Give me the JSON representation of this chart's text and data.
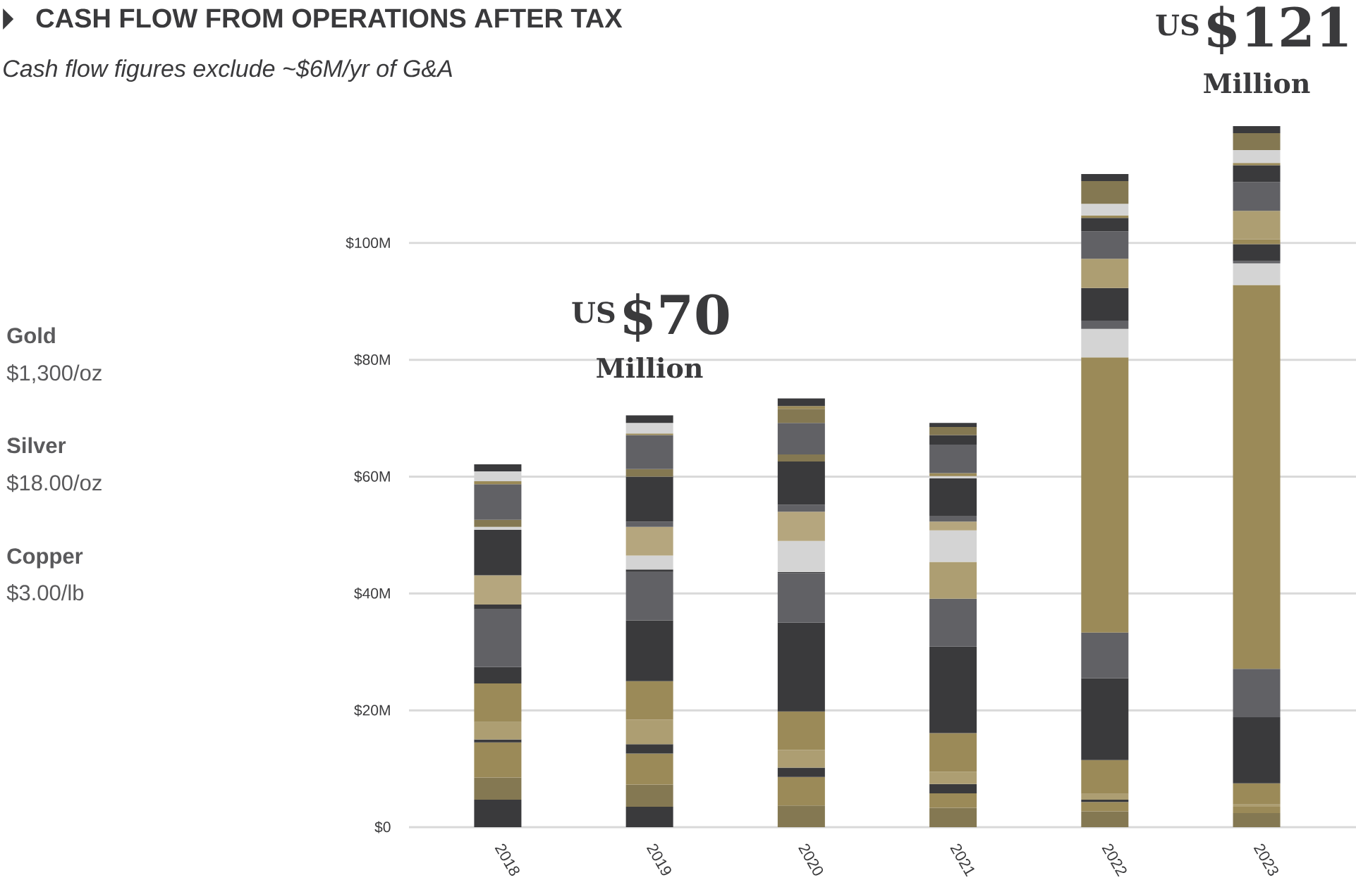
{
  "chart_data": {
    "type": "bar",
    "stacked": true,
    "grid": "y",
    "title": "CASH FLOW FROM OPERATIONS AFTER TAX",
    "subtitle": "Cash flow figures exclude ~$6M/yr of G&A",
    "categories": [
      "2018",
      "2019",
      "2020",
      "2021",
      "2022",
      "2023"
    ],
    "ylim": [
      0,
      120
    ],
    "yticks": [
      {
        "value": 0,
        "label": "$0"
      },
      {
        "value": 20,
        "label": "$20M"
      },
      {
        "value": 40,
        "label": "$40M"
      },
      {
        "value": 60,
        "label": "$60M"
      },
      {
        "value": 80,
        "label": "$80M"
      },
      {
        "value": 100,
        "label": "$100M"
      }
    ],
    "annotations": [
      "Gold",
      "$1,300/oz",
      "Silver",
      "$18.00/oz",
      "Copper",
      "$3.00/lb",
      "US",
      "$70",
      "Million",
      "US",
      "$121",
      "Million"
    ],
    "series": [
      {
        "values": [
          4.7,
          3.5,
          3.7,
          3.3,
          2.7,
          2.4
        ],
        "colors": [
          "#3a3a3c",
          "#3a3a3c",
          "#847852",
          "#847852",
          "#847852",
          "#847852"
        ]
      },
      {
        "values": [
          3.8,
          3.8,
          4.9,
          2.5,
          1.6,
          1.1
        ],
        "colors": [
          "#847852",
          "#847852",
          "#9b8a58",
          "#9b8a58",
          "#9b8a58",
          "#9b8a58"
        ]
      },
      {
        "values": [
          6.0,
          5.3,
          1.6,
          1.6,
          0.4,
          0.4
        ],
        "colors": [
          "#9b8a58",
          "#9b8a58",
          "#3a3a3c",
          "#3a3a3c",
          "#3a3a3c",
          "#ad9e72"
        ]
      },
      {
        "values": [
          0.5,
          1.6,
          3.0,
          2.1,
          1.0,
          3.6
        ],
        "colors": [
          "#3a3a3c",
          "#3a3a3c",
          "#ad9e72",
          "#ad9e72",
          "#ad9e72",
          "#9b8a58"
        ]
      },
      {
        "values": [
          3.0,
          4.2,
          6.6,
          6.6,
          5.8,
          11.3
        ],
        "colors": [
          "#ad9e72",
          "#ad9e72",
          "#9b8a58",
          "#9b8a58",
          "#9b8a58",
          "#3a3a3c"
        ]
      },
      {
        "values": [
          6.6,
          6.6,
          15.2,
          14.8,
          14.0,
          8.3
        ],
        "colors": [
          "#9b8a58",
          "#9b8a58",
          "#3a3a3c",
          "#3a3a3c",
          "#3a3a3c",
          "#616165"
        ]
      },
      {
        "values": [
          2.8,
          10.4,
          8.5,
          8.2,
          7.8,
          65.7
        ],
        "colors": [
          "#3a3a3c",
          "#3a3a3c",
          "#616165",
          "#616165",
          "#616165",
          "#9b8a58"
        ]
      },
      {
        "values": [
          9.9,
          8.3,
          0.2,
          6.3,
          47.1,
          3.7
        ],
        "colors": [
          "#616165",
          "#616165",
          "#3a3a3c",
          "#ad9e72",
          "#9b8a58",
          "#d4d4d4"
        ]
      },
      {
        "values": [
          0.8,
          0.4,
          5.3,
          5.4,
          4.9,
          0.4
        ],
        "colors": [
          "#3a3a3c",
          "#3a3a3c",
          "#d4d4d4",
          "#d4d4d4",
          "#d4d4d4",
          "#616165"
        ]
      },
      {
        "values": [
          5.0,
          2.4,
          5.0,
          1.5,
          1.4,
          2.9
        ],
        "colors": [
          "#b5a67e",
          "#d4d4d4",
          "#b5a67e",
          "#b5a67e",
          "#616165",
          "#3a3a3c"
        ]
      },
      {
        "values": [
          7.8,
          4.9,
          1.2,
          0.9,
          5.6,
          0.8
        ],
        "colors": [
          "#3a3a3c",
          "#b5a67e",
          "#616165",
          "#616165",
          "#3a3a3c",
          "#9b8a58"
        ]
      },
      {
        "values": [
          0.5,
          0.9,
          7.4,
          6.5,
          5.0,
          4.9
        ],
        "colors": [
          "#d4d4d4",
          "#616165",
          "#3a3a3c",
          "#3a3a3c",
          "#ad9e72",
          "#ad9e72"
        ]
      },
      {
        "values": [
          1.2,
          7.7,
          1.2,
          0.4,
          4.7,
          4.9
        ],
        "colors": [
          "#847852",
          "#3a3a3c",
          "#847852",
          "#d4d4d4",
          "#616165",
          "#616165"
        ]
      },
      {
        "values": [
          6.1,
          1.3,
          5.4,
          0.5,
          2.3,
          2.9
        ],
        "colors": [
          "#616165",
          "#847852",
          "#616165",
          "#9b8a58",
          "#3a3a3c",
          "#3a3a3c"
        ]
      },
      {
        "values": [
          0.5,
          5.8,
          2.4,
          4.9,
          0.4,
          0.4
        ],
        "colors": [
          "#9b8a58",
          "#616165",
          "#847852",
          "#616165",
          "#9b8a58",
          "#9b8a58"
        ]
      },
      {
        "values": [
          1.7,
          0.3,
          0.5,
          1.6,
          2.0,
          2.2
        ],
        "colors": [
          "#d4d4d4",
          "#9b8a58",
          "#9b8a58",
          "#3a3a3c",
          "#d4d4d4",
          "#d4d4d4"
        ]
      },
      {
        "values": [
          1.2,
          1.8,
          1.3,
          1.4,
          3.9,
          2.9
        ],
        "colors": [
          "#3a3a3c",
          "#d4d4d4",
          "#3a3a3c",
          "#847852",
          "#847852",
          "#847852"
        ]
      },
      {
        "values": [
          null,
          1.3,
          null,
          0.7,
          1.2,
          1.2
        ],
        "colors": [
          null,
          "#3a3a3c",
          null,
          "#3a3a3c",
          "#3a3a3c",
          "#3a3a3c"
        ]
      }
    ]
  }
}
